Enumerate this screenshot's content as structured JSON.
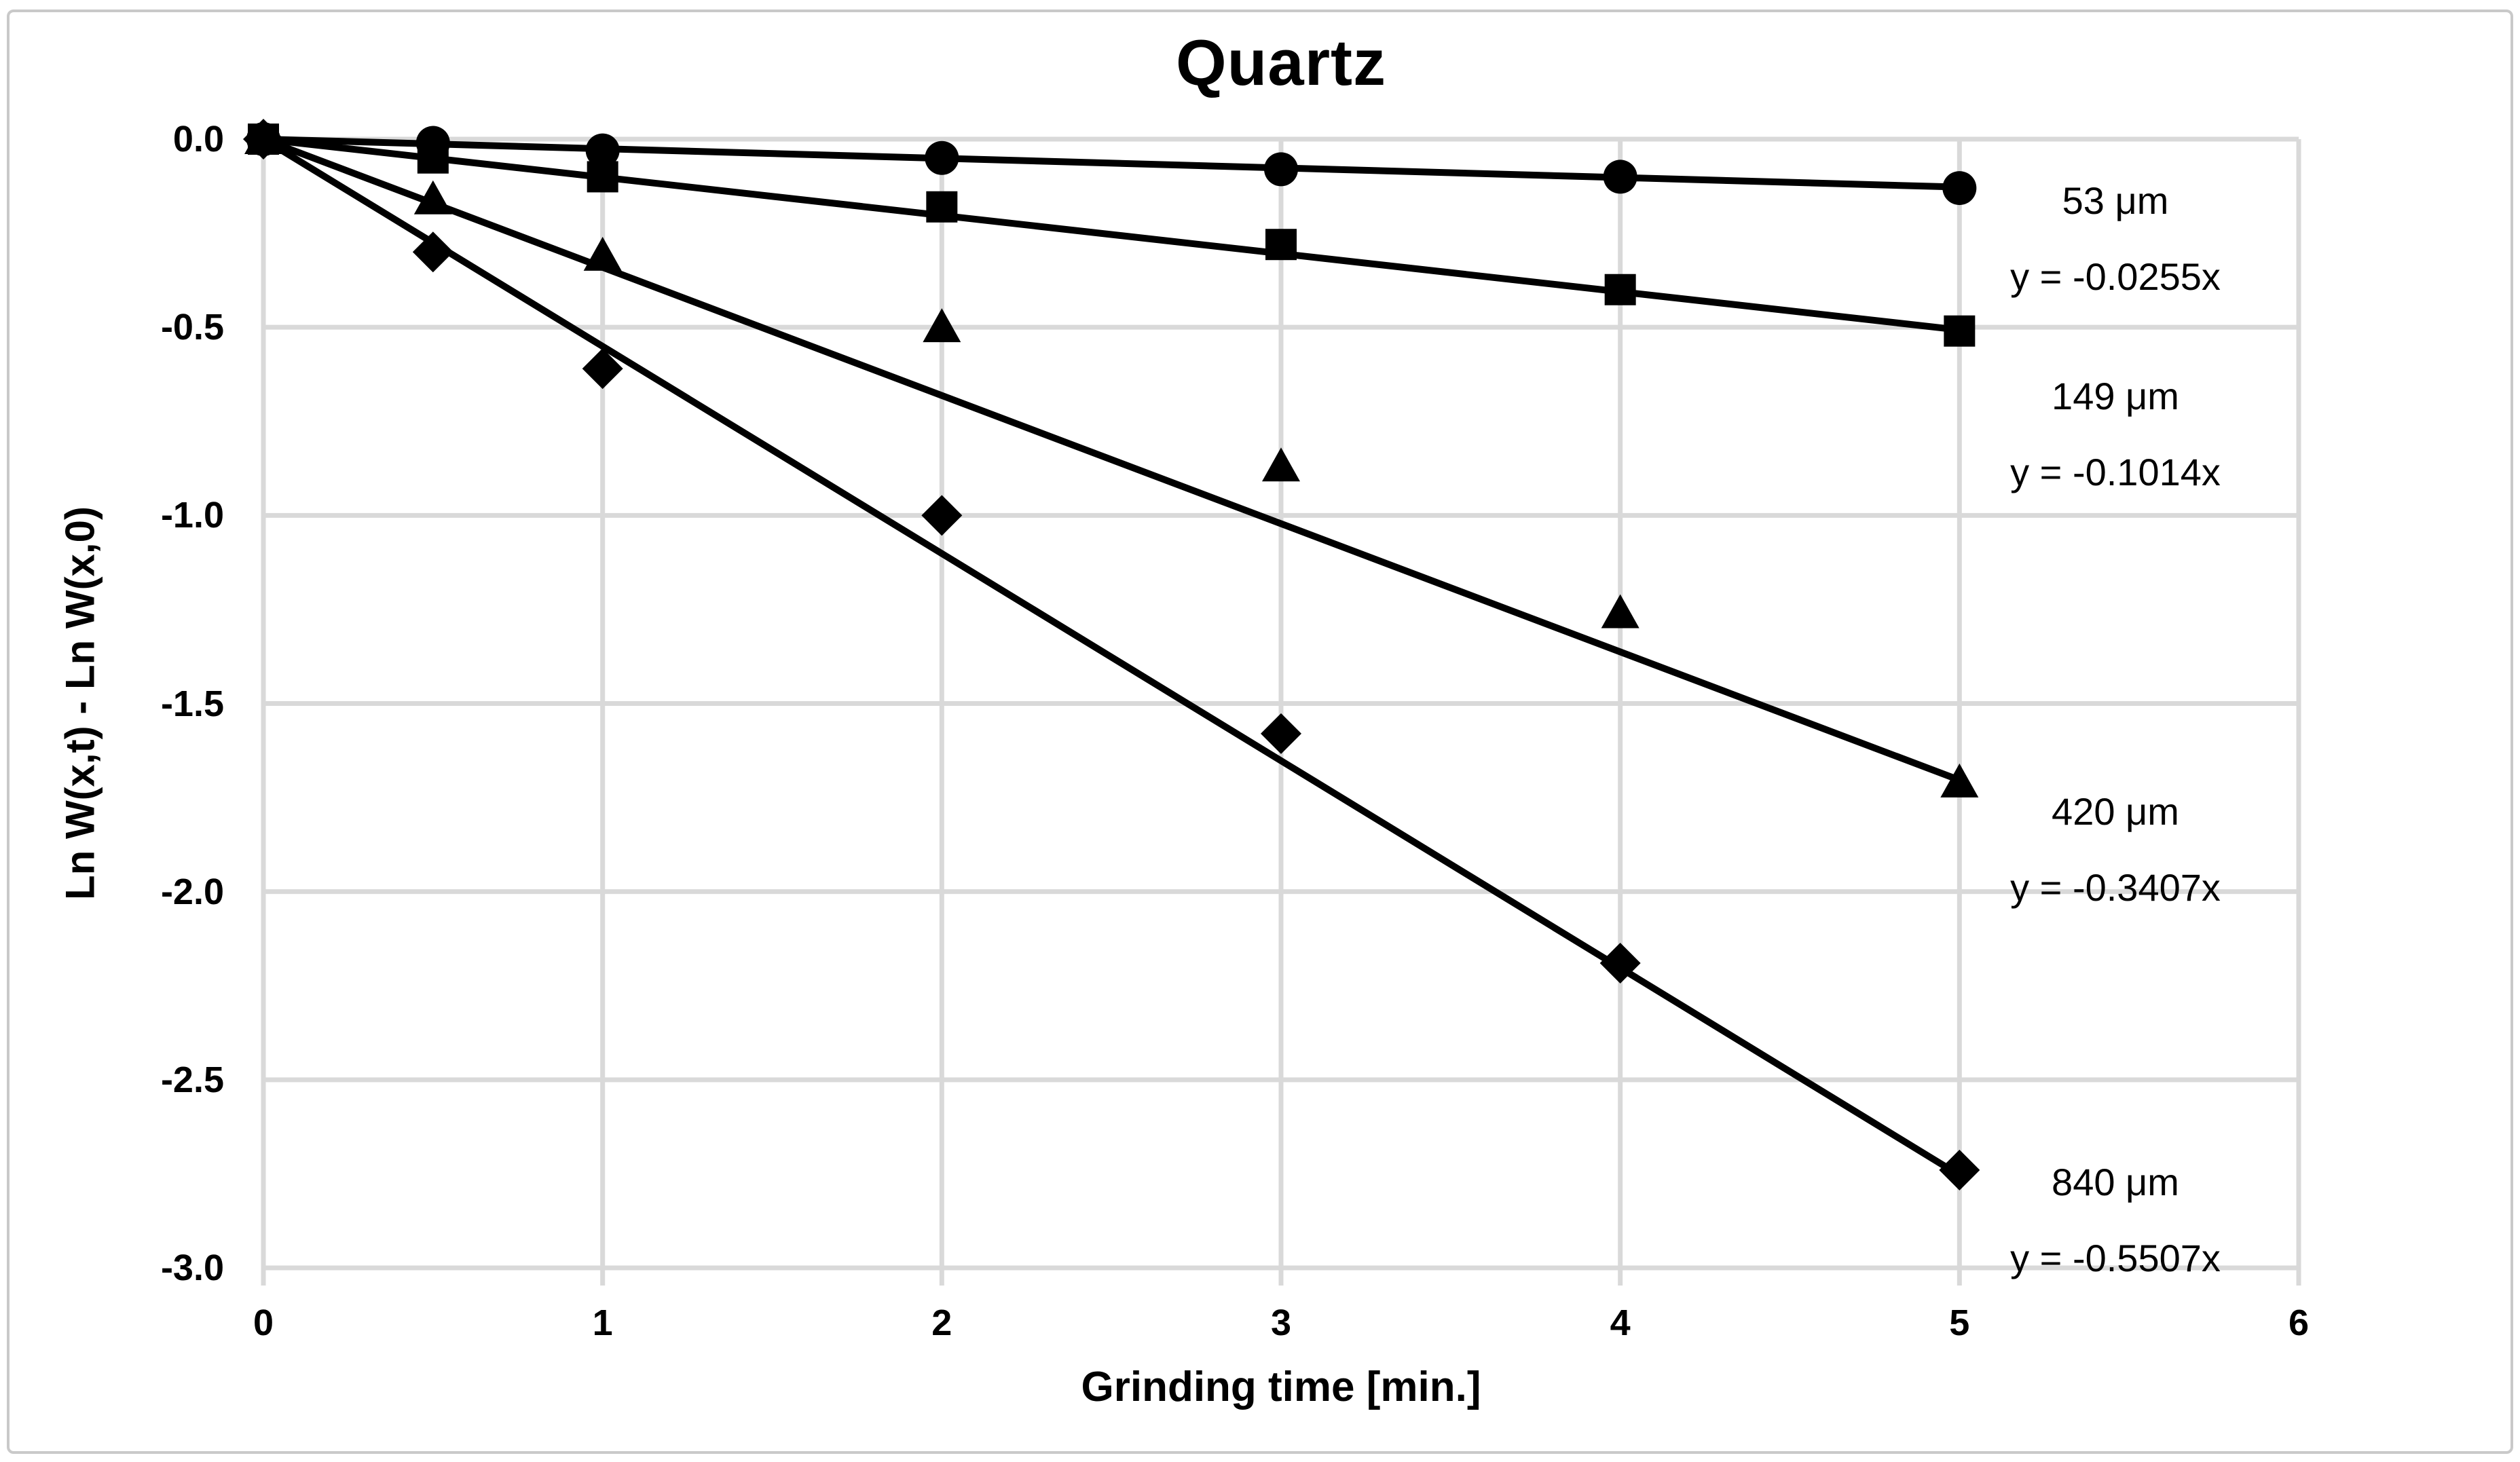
{
  "chart_data": {
    "type": "scatter",
    "title": "Quartz",
    "xlabel": "Grinding time [min.]",
    "ylabel": "Ln W(x,t) - Ln W(x,0)",
    "xlim": [
      0,
      6
    ],
    "ylim": [
      -3.0,
      0.0
    ],
    "x_ticks": [
      "0",
      "1",
      "2",
      "3",
      "4",
      "5",
      "6"
    ],
    "y_ticks": [
      "0.0",
      "-0.5",
      "-1.0",
      "-1.5",
      "-2.0",
      "-2.5",
      "-3.0"
    ],
    "grid": true,
    "legend_position": "right-side-annotations",
    "x": [
      0,
      0.5,
      1,
      2,
      3,
      4,
      5
    ],
    "series": [
      {
        "name": "53um",
        "label": "53 μm",
        "marker": "circle",
        "equation": "y = -0.0255x",
        "trendline_slope": -0.0255,
        "values": [
          0.0,
          -0.01,
          -0.03,
          -0.05,
          -0.08,
          -0.1,
          -0.13
        ]
      },
      {
        "name": "149um",
        "label": "149 μm",
        "marker": "square",
        "equation": "y = -0.1014x",
        "trendline_slope": -0.1014,
        "values": [
          0.0,
          -0.05,
          -0.1,
          -0.18,
          -0.28,
          -0.4,
          -0.51
        ]
      },
      {
        "name": "420um",
        "label": "420 μm",
        "marker": "triangle",
        "equation": "y = -0.3407x",
        "trendline_slope": -0.3407,
        "values": [
          0.0,
          -0.16,
          -0.31,
          -0.5,
          -0.87,
          -1.26,
          -1.71
        ]
      },
      {
        "name": "840um",
        "label": "840 μm",
        "marker": "diamond",
        "equation": "y = -0.5507x",
        "trendline_slope": -0.5507,
        "values": [
          0.0,
          -0.3,
          -0.61,
          -1.0,
          -1.58,
          -2.19,
          -2.74
        ]
      }
    ],
    "colors": {
      "marker": "#000000",
      "trendline": "#000000",
      "grid": "#d9d9d9",
      "background": "#ffffff",
      "text": "#000000",
      "frame": "#c9c9c9"
    }
  }
}
